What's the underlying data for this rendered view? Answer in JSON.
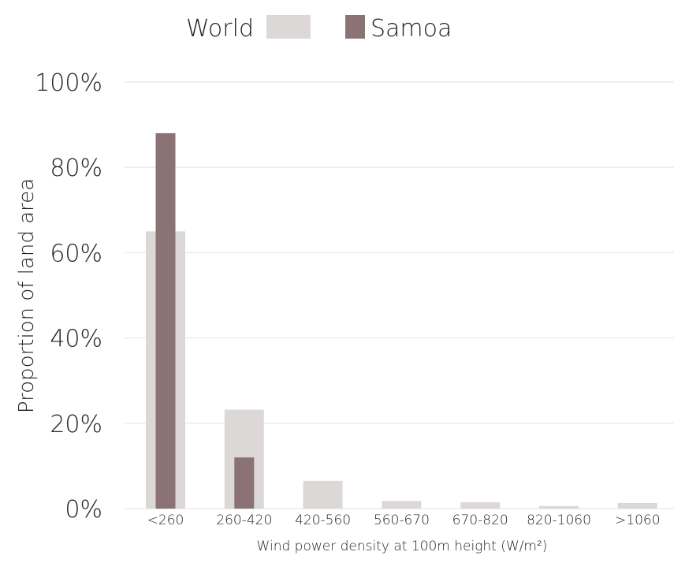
{
  "chart_data": {
    "type": "bar",
    "xlabel": "Wind power density at 100m height (W/m²)",
    "ylabel": "Proportion of land area",
    "ylim": [
      0,
      100
    ],
    "y_ticks": [
      "0%",
      "20%",
      "40%",
      "60%",
      "80%",
      "100%"
    ],
    "y_tick_values": [
      0,
      20,
      40,
      60,
      80,
      100
    ],
    "grid": true,
    "legend_position": "top",
    "categories": [
      "<260",
      "260-420",
      "420-560",
      "560-670",
      "670-820",
      "820-1060",
      ">1060"
    ],
    "series": [
      {
        "name": "World",
        "color": "#ddd8d8",
        "values": [
          65,
          23.2,
          6.5,
          1.8,
          1.5,
          0.6,
          1.3
        ]
      },
      {
        "name": "Samoa",
        "color": "#8a7275",
        "values": [
          88,
          12,
          0,
          0,
          0,
          0,
          0
        ]
      }
    ]
  }
}
